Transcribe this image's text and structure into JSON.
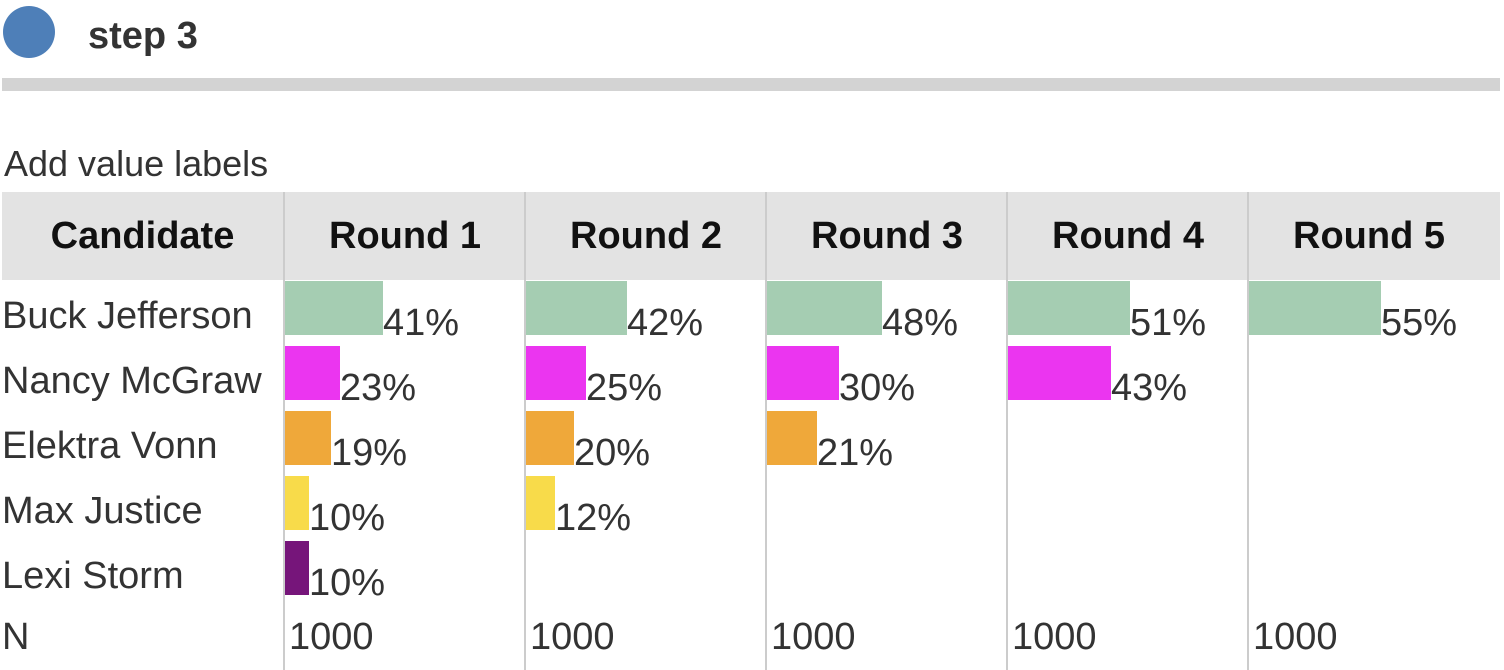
{
  "step": {
    "label": "step 3",
    "dot_color": "#4e7fb8"
  },
  "subtitle": "Add value labels",
  "chart_data": {
    "type": "bar",
    "title": "",
    "first_column_header": "Candidate",
    "rounds": [
      "Round 1",
      "Round 2",
      "Round 3",
      "Round 4",
      "Round 5"
    ],
    "candidates": [
      "Buck Jefferson",
      "Nancy McGraw",
      "Elektra Vonn",
      "Max Justice",
      "Lexi Storm"
    ],
    "colors": [
      "#a5cdb2",
      "#eb35f0",
      "#efa83a",
      "#f8db4a",
      "#76157a"
    ],
    "values": [
      [
        41,
        42,
        48,
        51,
        55
      ],
      [
        23,
        25,
        30,
        43,
        null
      ],
      [
        19,
        20,
        21,
        null,
        null
      ],
      [
        10,
        12,
        null,
        null,
        null
      ],
      [
        10,
        null,
        null,
        null,
        null
      ]
    ],
    "value_suffix": "%",
    "n_label": "N",
    "n_values": [
      "1000",
      "1000",
      "1000",
      "1000",
      "1000"
    ],
    "scale_max_percent": 100
  }
}
